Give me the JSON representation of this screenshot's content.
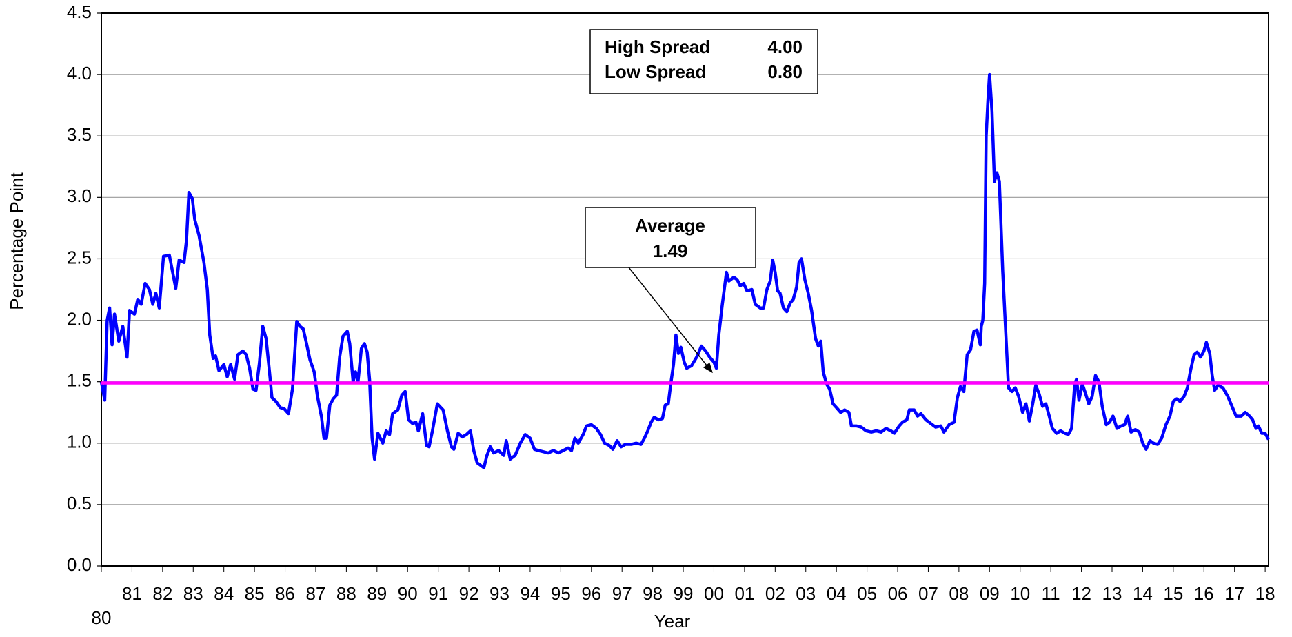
{
  "chart_data": {
    "type": "line",
    "x_label": "Year",
    "y_label": "Percentage Point",
    "color": "#0000ff",
    "grid": true,
    "x": [
      1980.0,
      1980.11,
      1980.19,
      1980.27,
      1980.35,
      1980.43,
      1980.57,
      1980.7,
      1980.84,
      1980.92,
      1981.08,
      1981.19,
      1981.3,
      1981.43,
      1981.57,
      1981.68,
      1981.78,
      1981.89,
      1982.03,
      1982.22,
      1982.43,
      1982.54,
      1982.7,
      1982.78,
      1982.86,
      1982.97,
      1983.05,
      1983.19,
      1983.35,
      1983.46,
      1983.54,
      1983.65,
      1983.73,
      1983.84,
      1984.0,
      1984.11,
      1984.22,
      1984.35,
      1984.46,
      1984.62,
      1984.73,
      1984.84,
      1984.95,
      1985.05,
      1985.16,
      1985.27,
      1985.38,
      1985.49,
      1985.57,
      1985.7,
      1985.84,
      1985.97,
      1986.11,
      1986.24,
      1986.38,
      1986.49,
      1986.59,
      1986.7,
      1986.81,
      1986.95,
      1987.05,
      1987.19,
      1987.27,
      1987.35,
      1987.46,
      1987.57,
      1987.68,
      1987.78,
      1987.89,
      1988.03,
      1988.11,
      1988.22,
      1988.3,
      1988.38,
      1988.49,
      1988.59,
      1988.68,
      1988.76,
      1988.84,
      1988.92,
      1989.03,
      1989.19,
      1989.3,
      1989.41,
      1989.51,
      1989.68,
      1989.81,
      1989.92,
      1990.03,
      1990.16,
      1990.27,
      1990.35,
      1990.49,
      1990.62,
      1990.7,
      1990.81,
      1990.97,
      1991.16,
      1991.3,
      1991.43,
      1991.51,
      1991.65,
      1991.78,
      1991.92,
      1992.05,
      1992.16,
      1992.27,
      1992.38,
      1992.49,
      1992.59,
      1992.7,
      1992.81,
      1992.97,
      1993.14,
      1993.22,
      1993.35,
      1993.51,
      1993.68,
      1993.84,
      1994.0,
      1994.14,
      1994.27,
      1994.43,
      1994.59,
      1994.76,
      1994.92,
      1995.08,
      1995.24,
      1995.35,
      1995.46,
      1995.57,
      1995.73,
      1995.84,
      1996.0,
      1996.16,
      1996.3,
      1996.43,
      1996.59,
      1996.7,
      1996.84,
      1996.97,
      1997.11,
      1997.3,
      1997.46,
      1997.62,
      1997.73,
      1997.84,
      1997.95,
      1998.05,
      1998.19,
      1998.32,
      1998.41,
      1998.51,
      1998.59,
      1998.68,
      1998.76,
      1998.84,
      1998.92,
      1999.03,
      1999.11,
      1999.27,
      1999.46,
      1999.59,
      1999.73,
      1999.86,
      2000.0,
      2000.08,
      2000.16,
      2000.27,
      2000.41,
      2000.49,
      2000.65,
      2000.76,
      2000.86,
      2000.97,
      2001.08,
      2001.24,
      2001.35,
      2001.51,
      2001.62,
      2001.73,
      2001.84,
      2001.92,
      2002.0,
      2002.08,
      2002.16,
      2002.27,
      2002.38,
      2002.49,
      2002.59,
      2002.7,
      2002.78,
      2002.86,
      2002.97,
      2003.08,
      2003.19,
      2003.32,
      2003.41,
      2003.49,
      2003.57,
      2003.68,
      2003.78,
      2003.89,
      2004.0,
      2004.14,
      2004.27,
      2004.41,
      2004.49,
      2004.65,
      2004.81,
      2004.97,
      2005.14,
      2005.3,
      2005.46,
      2005.62,
      2005.78,
      2005.89,
      2006.05,
      2006.16,
      2006.3,
      2006.38,
      2006.54,
      2006.65,
      2006.76,
      2006.92,
      2007.08,
      2007.24,
      2007.41,
      2007.51,
      2007.68,
      2007.84,
      2007.95,
      2008.05,
      2008.16,
      2008.27,
      2008.38,
      2008.49,
      2008.59,
      2008.7,
      2008.73,
      2008.78,
      2008.84,
      2008.89,
      2008.95,
      2009.0,
      2009.08,
      2009.16,
      2009.24,
      2009.32,
      2009.43,
      2009.51,
      2009.62,
      2009.73,
      2009.84,
      2009.95,
      2010.08,
      2010.19,
      2010.3,
      2010.41,
      2010.51,
      2010.62,
      2010.73,
      2010.84,
      2010.95,
      2011.05,
      2011.19,
      2011.32,
      2011.46,
      2011.57,
      2011.68,
      2011.78,
      2011.84,
      2011.92,
      2012.03,
      2012.14,
      2012.24,
      2012.35,
      2012.46,
      2012.57,
      2012.68,
      2012.81,
      2012.92,
      2013.03,
      2013.16,
      2013.3,
      2013.41,
      2013.51,
      2013.62,
      2013.76,
      2013.89,
      2014.0,
      2014.11,
      2014.24,
      2014.35,
      2014.49,
      2014.62,
      2014.76,
      2014.89,
      2015.0,
      2015.11,
      2015.22,
      2015.35,
      2015.46,
      2015.57,
      2015.68,
      2015.78,
      2015.89,
      2016.0,
      2016.08,
      2016.19,
      2016.27,
      2016.35,
      2016.46,
      2016.62,
      2016.78,
      2016.95,
      2017.05,
      2017.22,
      2017.35,
      2017.49,
      2017.59,
      2017.7,
      2017.78,
      2017.89,
      2018.0,
      2018.11
    ],
    "values": [
      1.5,
      1.35,
      2.0,
      2.1,
      1.8,
      2.05,
      1.83,
      1.95,
      1.7,
      2.08,
      2.05,
      2.17,
      2.13,
      2.3,
      2.25,
      2.13,
      2.22,
      2.1,
      2.52,
      2.53,
      2.26,
      2.49,
      2.47,
      2.65,
      3.04,
      2.99,
      2.82,
      2.69,
      2.47,
      2.25,
      1.88,
      1.69,
      1.71,
      1.59,
      1.64,
      1.54,
      1.64,
      1.52,
      1.72,
      1.75,
      1.72,
      1.61,
      1.44,
      1.43,
      1.65,
      1.95,
      1.85,
      1.58,
      1.37,
      1.34,
      1.29,
      1.28,
      1.24,
      1.44,
      1.99,
      1.95,
      1.93,
      1.81,
      1.68,
      1.58,
      1.39,
      1.21,
      1.04,
      1.04,
      1.31,
      1.36,
      1.39,
      1.7,
      1.87,
      1.91,
      1.81,
      1.5,
      1.58,
      1.5,
      1.77,
      1.81,
      1.74,
      1.51,
      1.04,
      0.87,
      1.08,
      1.0,
      1.1,
      1.07,
      1.24,
      1.27,
      1.39,
      1.42,
      1.19,
      1.16,
      1.17,
      1.1,
      1.24,
      0.98,
      0.97,
      1.1,
      1.32,
      1.27,
      1.1,
      0.97,
      0.95,
      1.08,
      1.05,
      1.07,
      1.1,
      0.94,
      0.84,
      0.82,
      0.8,
      0.9,
      0.97,
      0.92,
      0.94,
      0.9,
      1.02,
      0.87,
      0.9,
      1.0,
      1.07,
      1.04,
      0.95,
      0.94,
      0.93,
      0.92,
      0.94,
      0.92,
      0.94,
      0.96,
      0.94,
      1.04,
      1.0,
      1.07,
      1.14,
      1.15,
      1.12,
      1.07,
      1.0,
      0.98,
      0.95,
      1.02,
      0.97,
      0.99,
      0.99,
      1.0,
      0.99,
      1.04,
      1.1,
      1.17,
      1.21,
      1.19,
      1.2,
      1.31,
      1.32,
      1.48,
      1.64,
      1.88,
      1.73,
      1.78,
      1.66,
      1.61,
      1.63,
      1.71,
      1.79,
      1.75,
      1.7,
      1.66,
      1.61,
      1.88,
      2.12,
      2.39,
      2.32,
      2.35,
      2.33,
      2.28,
      2.3,
      2.24,
      2.25,
      2.13,
      2.1,
      2.1,
      2.25,
      2.32,
      2.49,
      2.39,
      2.24,
      2.22,
      2.1,
      2.07,
      2.14,
      2.17,
      2.27,
      2.47,
      2.5,
      2.33,
      2.22,
      2.08,
      1.85,
      1.79,
      1.83,
      1.58,
      1.48,
      1.44,
      1.32,
      1.29,
      1.25,
      1.27,
      1.25,
      1.14,
      1.14,
      1.13,
      1.1,
      1.09,
      1.1,
      1.09,
      1.12,
      1.1,
      1.08,
      1.14,
      1.17,
      1.19,
      1.27,
      1.27,
      1.22,
      1.24,
      1.19,
      1.16,
      1.13,
      1.14,
      1.09,
      1.15,
      1.17,
      1.37,
      1.46,
      1.42,
      1.72,
      1.76,
      1.91,
      1.92,
      1.8,
      1.95,
      2.0,
      2.3,
      3.5,
      3.8,
      4.0,
      3.7,
      3.13,
      3.2,
      3.13,
      2.4,
      2.0,
      1.45,
      1.42,
      1.45,
      1.38,
      1.25,
      1.32,
      1.18,
      1.32,
      1.47,
      1.4,
      1.3,
      1.32,
      1.22,
      1.12,
      1.08,
      1.1,
      1.08,
      1.07,
      1.12,
      1.48,
      1.52,
      1.35,
      1.48,
      1.4,
      1.32,
      1.38,
      1.55,
      1.5,
      1.3,
      1.15,
      1.17,
      1.22,
      1.12,
      1.14,
      1.15,
      1.22,
      1.09,
      1.11,
      1.09,
      1.0,
      0.95,
      1.02,
      1.0,
      0.99,
      1.04,
      1.15,
      1.22,
      1.34,
      1.36,
      1.34,
      1.38,
      1.45,
      1.6,
      1.72,
      1.74,
      1.7,
      1.75,
      1.82,
      1.73,
      1.55,
      1.43,
      1.47,
      1.45,
      1.38,
      1.28,
      1.22,
      1.22,
      1.25,
      1.22,
      1.19,
      1.12,
      1.14,
      1.08,
      1.08,
      1.03
    ],
    "xlim": [
      1980,
      2018.11
    ],
    "xticks": [
      {
        "value": 1980,
        "label": "80"
      },
      {
        "value": 1981,
        "label": "81"
      },
      {
        "value": 1982,
        "label": "82"
      },
      {
        "value": 1983,
        "label": "83"
      },
      {
        "value": 1984,
        "label": "84"
      },
      {
        "value": 1985,
        "label": "85"
      },
      {
        "value": 1986,
        "label": "86"
      },
      {
        "value": 1987,
        "label": "87"
      },
      {
        "value": 1988,
        "label": "88"
      },
      {
        "value": 1989,
        "label": "89"
      },
      {
        "value": 1990,
        "label": "90"
      },
      {
        "value": 1991,
        "label": "91"
      },
      {
        "value": 1992,
        "label": "92"
      },
      {
        "value": 1993,
        "label": "93"
      },
      {
        "value": 1994,
        "label": "94"
      },
      {
        "value": 1995,
        "label": "95"
      },
      {
        "value": 1996,
        "label": "96"
      },
      {
        "value": 1997,
        "label": "97"
      },
      {
        "value": 1998,
        "label": "98"
      },
      {
        "value": 1999,
        "label": "99"
      },
      {
        "value": 2000,
        "label": "00"
      },
      {
        "value": 2001,
        "label": "01"
      },
      {
        "value": 2002,
        "label": "02"
      },
      {
        "value": 2003,
        "label": "03"
      },
      {
        "value": 2004,
        "label": "04"
      },
      {
        "value": 2005,
        "label": "05"
      },
      {
        "value": 2006,
        "label": "06"
      },
      {
        "value": 2007,
        "label": "07"
      },
      {
        "value": 2008,
        "label": "08"
      },
      {
        "value": 2009,
        "label": "09"
      },
      {
        "value": 2010,
        "label": "10"
      },
      {
        "value": 2011,
        "label": "11"
      },
      {
        "value": 2012,
        "label": "12"
      },
      {
        "value": 2013,
        "label": "13"
      },
      {
        "value": 2014,
        "label": "14"
      },
      {
        "value": 2015,
        "label": "15"
      },
      {
        "value": 2016,
        "label": "16"
      },
      {
        "value": 2017,
        "label": "17"
      },
      {
        "value": 2018,
        "label": "18"
      }
    ],
    "ylim": [
      0,
      4.5
    ],
    "yticks": [
      {
        "value": 0,
        "label": "0.0"
      },
      0.5,
      {
        "value": 1,
        "label": "1.0"
      },
      1.5,
      {
        "value": 2,
        "label": "2.0"
      },
      2.5,
      {
        "value": 3,
        "label": "3.0"
      },
      3.5,
      {
        "value": 4,
        "label": "4.0"
      },
      4.5
    ],
    "average": {
      "label": "Average",
      "value": 1.49,
      "value_label": "1.49",
      "color": "#ff00ff"
    },
    "stats": [
      {
        "label": "High Spread",
        "value": 4,
        "value_label": "4.00"
      },
      {
        "label": "Low Spread",
        "value": 0.8,
        "value_label": "0.80"
      }
    ]
  }
}
